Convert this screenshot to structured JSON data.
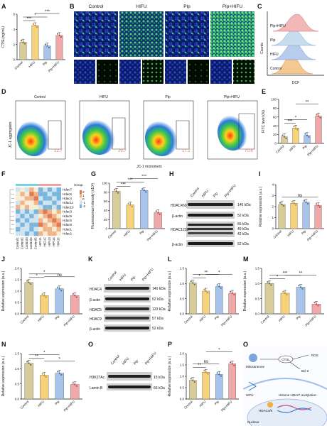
{
  "panel_labels": {
    "A": "A",
    "B": "B",
    "C": "C",
    "D": "D",
    "E": "E",
    "F": "F",
    "G": "G",
    "H": "H",
    "I": "I",
    "J": "J",
    "K": "K",
    "L": "L",
    "M": "M",
    "N": "N",
    "O": "O",
    "P": "P",
    "Q": "Q"
  },
  "groups": [
    "Control",
    "HIFU",
    "Plp",
    "Plp+HIFU"
  ],
  "colors": {
    "control": "#d8cc9a",
    "hifu": "#f6d27a",
    "plp": "#a8c4ea",
    "plphifu": "#f0a8a8",
    "ctrl_dot": "#7a6a2a",
    "hifu_dot": "#c98a20",
    "plp_dot": "#3d6fb5",
    "plphifu_dot": "#c04a4a"
  },
  "A": {
    "ylabel": "CTSL(ng/mL)",
    "yticks": [
      "0",
      "2",
      "4",
      "6"
    ],
    "sig": [
      "***",
      "*",
      "***"
    ],
    "chart_data": {
      "type": "bar",
      "categories": [
        "Control",
        "HIFU",
        "Plp",
        "Plp+HIFU"
      ],
      "values": [
        2.3,
        4.5,
        1.8,
        3.2
      ],
      "ylim": [
        0,
        6
      ]
    }
  },
  "B": {
    "cols": [
      "Control",
      "HIFU",
      "Plp",
      "Plp+HIFU"
    ]
  },
  "C": {
    "legend": [
      "Plp+HIFU",
      "Plp",
      "HIFU",
      "Control"
    ],
    "xlabel": "DCF",
    "ylabel": "Counts"
  },
  "D": {
    "ylabel": "JC-1 aggregates",
    "xlabel": "JC-1 monomers",
    "cols": [
      "Control",
      "HIFU",
      "Plp",
      "Plp+HIFU"
    ],
    "values": [
      "12.7",
      "29.7",
      "17.2",
      "70.8"
    ]
  },
  "E": {
    "ylabel": "FITC level (%)",
    "yticks": [
      "0",
      "20",
      "40",
      "60",
      "80",
      "100"
    ],
    "sig": [
      "***",
      "*",
      "**"
    ],
    "chart_data": {
      "type": "bar",
      "categories": [
        "Control",
        "HIFU",
        "Plp",
        "Plp+HIFU"
      ],
      "values": [
        15,
        35,
        18,
        62
      ],
      "ylim": [
        0,
        100
      ]
    }
  },
  "F": {
    "rows": [
      "Hdac7",
      "Hdac5",
      "Hdac4",
      "Hdac11",
      "Hdac10",
      "Hdac3",
      "Hdac9",
      "Hdac6",
      "Hdac8",
      "Hdac1",
      "Hdac2"
    ],
    "cols": [
      "Control1",
      "Control2",
      "Control3",
      "Control4",
      "Control5",
      "HIFU1",
      "HIFU2",
      "HIFU3",
      "HIFU4",
      "HIFU5"
    ],
    "legend_title": "Group",
    "scale": [
      "2",
      "1",
      "0",
      "-1",
      "-2"
    ]
  },
  "G": {
    "ylabel": "Fluorescence intensity (x10³)",
    "yticks": [
      "0",
      "20",
      "40",
      "60",
      "80",
      "100"
    ],
    "sig": [
      "***",
      "***",
      "***"
    ],
    "chart_data": {
      "type": "bar",
      "categories": [
        "Control",
        "HIFU",
        "Plp",
        "Plp+HIFU"
      ],
      "values": [
        82,
        52,
        84,
        35
      ],
      "ylim": [
        0,
        100
      ]
    }
  },
  "H": {
    "cols": [
      "Control",
      "HIFU",
      "Plp",
      "Plp+HIFU"
    ],
    "rows": [
      "HDAC459",
      "β-actin",
      "HDAC1238",
      "β-actin"
    ],
    "kda": [
      "140 kDa",
      "52 kDa",
      "55 kDa",
      "49 kDa",
      "42 kDa",
      "52 kDa"
    ]
  },
  "I": {
    "ylabel": "Relative expression (a.u.)",
    "yticks": [
      "0",
      "1",
      "2",
      "3",
      "4"
    ],
    "sig": [
      "ns"
    ],
    "chart_data": {
      "type": "bar",
      "categories": [
        "Control",
        "HIFU",
        "Plp",
        "Plp+HIFU"
      ],
      "values": [
        2.2,
        2.3,
        2.4,
        2.1
      ],
      "ylim": [
        0,
        4
      ]
    }
  },
  "J": {
    "ylabel": "Relative expression (a.u.)",
    "yticks": [
      "0.0",
      "0.5",
      "1.0",
      "1.5",
      "2.0"
    ],
    "sig": [
      "*",
      "*",
      "ns"
    ],
    "chart_data": {
      "type": "bar",
      "categories": [
        "Control",
        "HIFU",
        "Plp",
        "Plp+HIFU"
      ],
      "values": [
        1.38,
        0.8,
        1.1,
        0.8
      ],
      "ylim": [
        0,
        2
      ]
    }
  },
  "K": {
    "cols": [
      "Control",
      "HIFU",
      "Plp",
      "Plp+HIFU"
    ],
    "rows": [
      "HDAC4",
      "β-actin",
      "HDAC5",
      "HDAC9",
      "β-actin"
    ],
    "kda": [
      "140 kDa",
      "52 kDa",
      "123 kDa",
      "57 kDa",
      "52 kDa"
    ]
  },
  "L": {
    "ylabel": "Relative expression (a.u.)",
    "yticks": [
      "0.0",
      "0.5",
      "1.0",
      "1.5"
    ],
    "sig": [
      "*",
      "**",
      "*"
    ],
    "chart_data": {
      "type": "bar",
      "categories": [
        "Control",
        "HIFU",
        "Plp",
        "Plp+HIFU"
      ],
      "values": [
        1.02,
        0.75,
        0.9,
        0.68
      ],
      "ylim": [
        0,
        1.5
      ]
    }
  },
  "M": {
    "ylabel": "Relative expression (a.u.)",
    "yticks": [
      "0.0",
      "0.5",
      "1.0",
      "1.5"
    ],
    "sig": [
      "*",
      "***",
      "**"
    ],
    "chart_data": {
      "type": "bar",
      "categories": [
        "Control",
        "HIFU",
        "Plp",
        "Plp+HIFU"
      ],
      "values": [
        1.0,
        0.68,
        0.88,
        0.32
      ],
      "ylim": [
        0,
        1.5
      ]
    }
  },
  "N": {
    "ylabel": "Relative expression (a.u.)",
    "yticks": [
      "0.0",
      "0.5",
      "1.0",
      "1.5"
    ],
    "sig": [
      "**",
      "*",
      "*"
    ],
    "chart_data": {
      "type": "bar",
      "categories": [
        "Control",
        "HIFU",
        "Plp",
        "Plp+HIFU"
      ],
      "values": [
        1.18,
        0.78,
        0.85,
        0.48
      ],
      "ylim": [
        0,
        1.5
      ]
    }
  },
  "O": {
    "cols": [
      "Control",
      "HIFU",
      "Plp",
      "Plp+HIFU"
    ],
    "rows": [
      "H3K27Ac",
      "Lamin B"
    ],
    "kda": [
      "15 kDa",
      "66 kDa"
    ]
  },
  "P": {
    "ylabel": "Relative expression (a.u.)",
    "yticks": [
      "0.0",
      "0.5",
      "1.0",
      "1.5",
      "2.0"
    ],
    "sig": [
      "**",
      "ns",
      "*"
    ],
    "chart_data": {
      "type": "bar",
      "categories": [
        "Control",
        "HIFU",
        "Plp",
        "Plp+HIFU"
      ],
      "values": [
        0.82,
        1.18,
        1.08,
        1.55
      ],
      "ylim": [
        0,
        2
      ]
    }
  },
  "Q": {
    "labels": [
      "Mitoxantrone",
      "CTSL",
      "Bcl-2",
      "ROS",
      "HIFU",
      "HDAC4/9",
      "Histone H3K27 acetylation",
      "Nucleus"
    ]
  }
}
